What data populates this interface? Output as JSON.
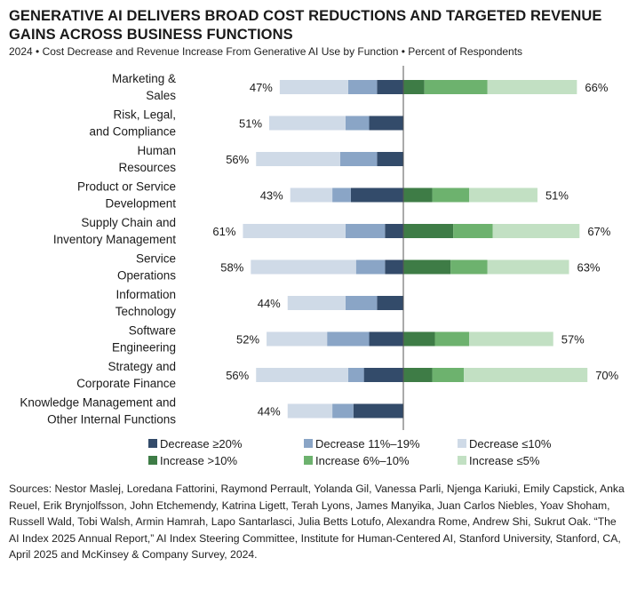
{
  "title": "GENERATIVE AI DELIVERS BROAD COST REDUCTIONS AND TARGETED REVENUE GAINS ACROSS BUSINESS FUNCTIONS",
  "subtitle": "2024 • Cost Decrease and Revenue Increase From Generative AI Use by Function • Percent of Respondents",
  "sources": "Sources: Nestor Maslej, Loredana Fattorini, Raymond Perrault, Yolanda Gil, Vanessa Parli, Njenga Kariuki, Emily Capstick, Anka Reuel, Erik Brynjolfsson, John Etchemendy, Katrina Ligett, Terah Lyons, James Manyika, Juan Carlos Niebles, Yoav Shoham, Russell Wald, Tobi Walsh, Armin Hamrah, Lapo Santarlasci, Julia Betts Lotufo, Alexandra Rome, Andrew Shi, Sukrut Oak. “The AI Index 2025 Annual Report,” AI Index Steering Committee, Institute for Human-Centered AI, Stanford University, Stanford, CA, April 2025 and McKinsey & Company Survey, 2024.",
  "chart_data": {
    "type": "bar",
    "orientation": "horizontal-diverging",
    "categories": [
      [
        "Marketing &",
        "Sales"
      ],
      [
        "Risk, Legal,",
        "and Compliance"
      ],
      [
        "Human",
        "Resources"
      ],
      [
        "Product or Service",
        "Development"
      ],
      [
        "Supply Chain and",
        "Inventory Management"
      ],
      [
        "Service",
        "Operations"
      ],
      [
        "Information",
        "Technology"
      ],
      [
        "Software",
        "Engineering"
      ],
      [
        "Strategy and",
        "Corporate Finance"
      ],
      [
        "Knowledge Management and",
        "Other Internal Functions"
      ]
    ],
    "cost_series": [
      {
        "name": "Decrease ≥20%",
        "color": "#334b6a",
        "values": [
          10,
          13,
          10,
          20,
          7,
          7,
          10,
          13,
          15,
          19
        ]
      },
      {
        "name": "Decrease 11%–19%",
        "color": "#8aa5c6",
        "values": [
          11,
          9,
          14,
          7,
          15,
          11,
          12,
          16,
          6,
          8
        ]
      },
      {
        "name": "Decrease ≤10%",
        "color": "#cfdae7",
        "values": [
          26,
          29,
          32,
          16,
          39,
          40,
          22,
          23,
          35,
          17
        ]
      }
    ],
    "revenue_series": [
      {
        "name": "Increase >10%",
        "color": "#3e7c46",
        "values": [
          8,
          0,
          0,
          11,
          19,
          18,
          0,
          12,
          11,
          0
        ]
      },
      {
        "name": "Increase 6%–10%",
        "color": "#6db26e",
        "values": [
          24,
          0,
          0,
          14,
          15,
          14,
          0,
          13,
          12,
          0
        ]
      },
      {
        "name": "Increase ≤5%",
        "color": "#c2e0c3",
        "values": [
          34,
          0,
          0,
          26,
          33,
          31,
          0,
          32,
          47,
          0
        ]
      }
    ],
    "cost_totals": [
      "47%",
      "51%",
      "56%",
      "43%",
      "61%",
      "58%",
      "44%",
      "52%",
      "56%",
      "44%"
    ],
    "revenue_totals": [
      "66%",
      "",
      "",
      "51%",
      "67%",
      "63%",
      "",
      "57%",
      "70%",
      ""
    ],
    "legend": {
      "placement": "bottom",
      "columns": 3
    }
  }
}
